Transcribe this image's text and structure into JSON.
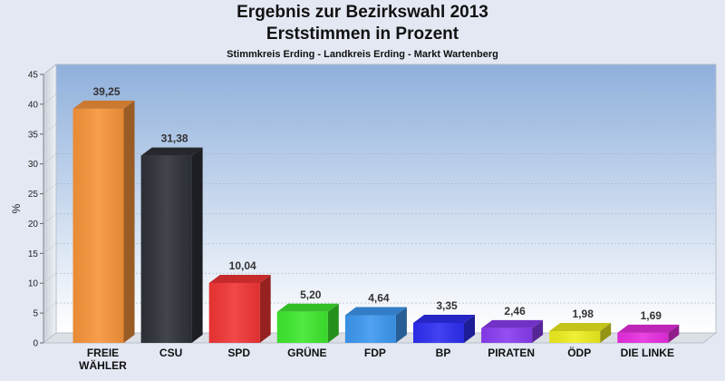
{
  "chart_data": {
    "type": "bar",
    "title": "Ergebnis zur Bezirkswahl 2013",
    "subtitle": "Erststimmen in Prozent",
    "caption": "Stimmkreis Erding - Landkreis Erding - Markt Wartenberg",
    "xlabel": "",
    "ylabel": "%",
    "ylim": [
      0,
      45
    ],
    "yticks": [
      0,
      5,
      10,
      15,
      20,
      25,
      30,
      35,
      40,
      45
    ],
    "grid": true,
    "categories": [
      "FREIE WÄHLER",
      "CSU",
      "SPD",
      "GRÜNE",
      "FDP",
      "BP",
      "PIRATEN",
      "ÖDP",
      "DIE LINKE"
    ],
    "category_labels": [
      [
        "FREIE",
        "WÄHLER"
      ],
      [
        "CSU"
      ],
      [
        "SPD"
      ],
      [
        "GRÜNE"
      ],
      [
        "FDP"
      ],
      [
        "BP"
      ],
      [
        "PIRATEN"
      ],
      [
        "ÖDP"
      ],
      [
        "DIE LINKE"
      ]
    ],
    "values": [
      39.25,
      31.38,
      10.04,
      5.2,
      4.64,
      3.35,
      2.46,
      1.98,
      1.69
    ],
    "value_labels": [
      "39,25",
      "31,38",
      "10,04",
      "5,20",
      "4,64",
      "3,35",
      "2,46",
      "1,98",
      "1,69"
    ],
    "colors": [
      "#f7943a",
      "#2e3138",
      "#f23535",
      "#3ee82e",
      "#3d98f0",
      "#2e2ef2",
      "#8a3cf2",
      "#eeee20",
      "#e82ee0"
    ]
  }
}
